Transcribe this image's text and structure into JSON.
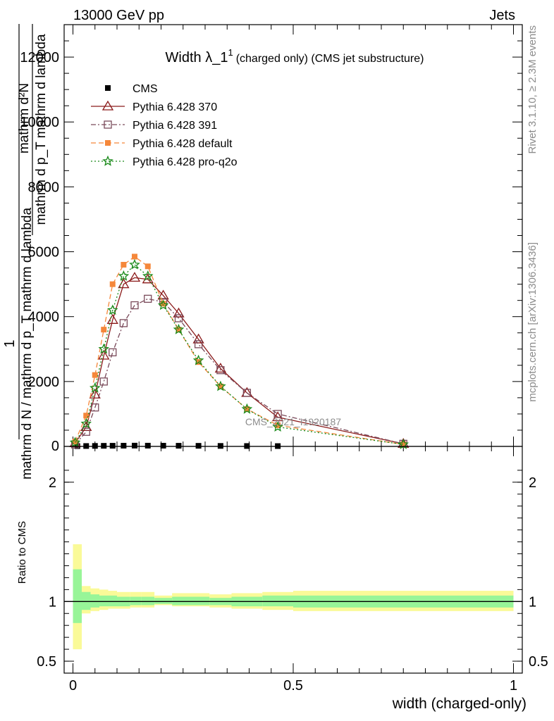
{
  "header": {
    "left": "13000 GeV pp",
    "right": "Jets"
  },
  "side": {
    "rivet": "Rivet 3.1.10, ≥ 2.3M events",
    "mcplots": "mcplots.cern.ch [arXiv:1306.3436]"
  },
  "chart_data": {
    "type": "line",
    "title": "Width λ_1¹ (charged only) (CMS jet substructure)",
    "title_main": "Width λ_1",
    "title_sup": "1",
    "title_rest": "(charged only) (CMS jet substructure)",
    "watermark": "CMS_2021_I1920187",
    "xlabel": "width (charged-only)",
    "ylabel_num": "1",
    "ylabel_den": "mathrm d N / mathrm d p_T mathrm d lambda",
    "ylabel_inner_num": "mathrm d²N",
    "ylabel_inner_den": "mathrm d p_T mathrm d lambda",
    "ratio_ylabel": "Ratio to CMS",
    "xlim": [
      -0.02,
      1.02
    ],
    "ylim": [
      0,
      13000
    ],
    "ratio_ylim": [
      0.4,
      2.3
    ],
    "x_ticks": [
      "0",
      "0.5",
      "1"
    ],
    "y_ticks": [
      "2000",
      "4000",
      "6000",
      "8000",
      "10000",
      "12000"
    ],
    "ratio_ticks": [
      "0.5",
      "1",
      "2"
    ],
    "legend_position": "top-left",
    "series": [
      {
        "name": "CMS",
        "color": "#000000",
        "x": [
          0.01,
          0.03,
          0.05,
          0.07,
          0.09,
          0.115,
          0.14,
          0.17,
          0.205,
          0.24,
          0.285,
          0.335,
          0.395,
          0.465
        ],
        "y": [
          8,
          12,
          15,
          18,
          20,
          22,
          24,
          23,
          22,
          20,
          18,
          15,
          12,
          10
        ]
      },
      {
        "name": "Pythia 6.428 370",
        "color": "#8b1a1a",
        "x": [
          0.005,
          0.03,
          0.05,
          0.07,
          0.09,
          0.115,
          0.14,
          0.17,
          0.205,
          0.24,
          0.285,
          0.335,
          0.395,
          0.465,
          0.75
        ],
        "y": [
          100,
          600,
          1600,
          2800,
          3900,
          5000,
          5200,
          5150,
          4650,
          4100,
          3300,
          2400,
          1650,
          900,
          80
        ]
      },
      {
        "name": "Pythia 6.428 391",
        "color": "#7a4a5a",
        "x": [
          0.005,
          0.03,
          0.05,
          0.07,
          0.09,
          0.115,
          0.14,
          0.17,
          0.205,
          0.24,
          0.285,
          0.335,
          0.395,
          0.465,
          0.75
        ],
        "y": [
          60,
          450,
          1200,
          2000,
          2900,
          3800,
          4350,
          4550,
          4450,
          3950,
          3150,
          2350,
          1650,
          1000,
          80
        ]
      },
      {
        "name": "Pythia 6.428 default",
        "color": "#f5873a",
        "x": [
          0.005,
          0.03,
          0.05,
          0.07,
          0.09,
          0.115,
          0.14,
          0.17,
          0.205,
          0.24,
          0.285,
          0.335,
          0.395,
          0.465,
          0.75
        ],
        "y": [
          150,
          950,
          2200,
          3600,
          5000,
          5600,
          5850,
          5550,
          4400,
          3600,
          2600,
          1850,
          1150,
          650,
          60
        ]
      },
      {
        "name": "Pythia 6.428 pro-q2o",
        "color": "#1a8a1a",
        "x": [
          0.005,
          0.03,
          0.05,
          0.07,
          0.09,
          0.115,
          0.14,
          0.17,
          0.205,
          0.24,
          0.285,
          0.335,
          0.395,
          0.465,
          0.75
        ],
        "y": [
          120,
          700,
          1800,
          3000,
          4200,
          5250,
          5600,
          5250,
          4350,
          3600,
          2650,
          1850,
          1150,
          600,
          60
        ]
      }
    ],
    "ratio_bands": {
      "edges": [
        0.0,
        0.02,
        0.04,
        0.06,
        0.08,
        0.1,
        0.13,
        0.155,
        0.185,
        0.225,
        0.26,
        0.31,
        0.36,
        0.43,
        0.5,
        1.0
      ],
      "inner": [
        [
          0.82,
          1.27
        ],
        [
          0.93,
          1.08
        ],
        [
          0.95,
          1.06
        ],
        [
          0.96,
          1.05
        ],
        [
          0.96,
          1.05
        ],
        [
          0.96,
          1.04
        ],
        [
          0.97,
          1.04
        ],
        [
          0.97,
          1.04
        ],
        [
          0.98,
          1.03
        ],
        [
          0.97,
          1.04
        ],
        [
          0.97,
          1.04
        ],
        [
          0.97,
          1.03
        ],
        [
          0.96,
          1.04
        ],
        [
          0.96,
          1.05
        ],
        [
          0.95,
          1.05
        ]
      ],
      "outer": [
        [
          0.6,
          1.48
        ],
        [
          0.9,
          1.13
        ],
        [
          0.92,
          1.11
        ],
        [
          0.93,
          1.1
        ],
        [
          0.94,
          1.09
        ],
        [
          0.94,
          1.08
        ],
        [
          0.95,
          1.08
        ],
        [
          0.95,
          1.08
        ],
        [
          0.97,
          1.05
        ],
        [
          0.96,
          1.07
        ],
        [
          0.96,
          1.07
        ],
        [
          0.95,
          1.06
        ],
        [
          0.94,
          1.07
        ],
        [
          0.93,
          1.08
        ],
        [
          0.92,
          1.09
        ]
      ],
      "inner_color": "#98f598",
      "outer_color": "#fafa98"
    }
  }
}
